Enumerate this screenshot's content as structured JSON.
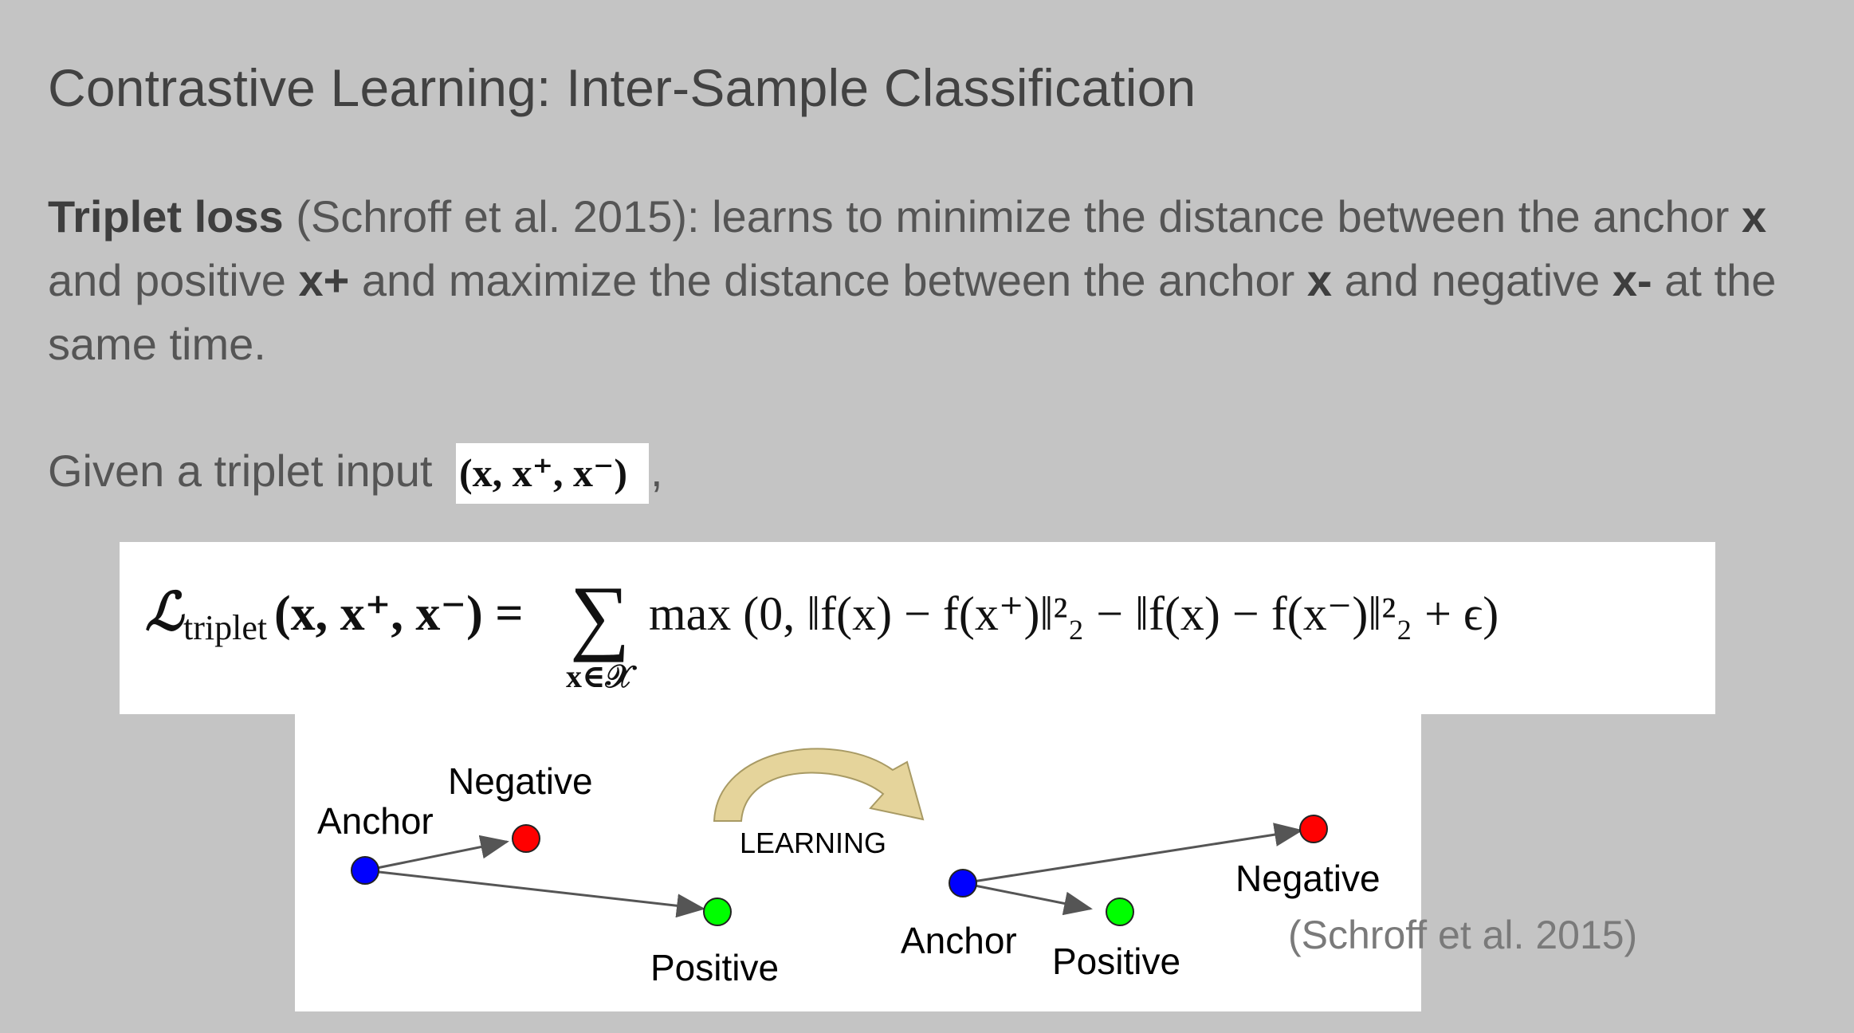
{
  "title": "Contrastive Learning: Inter-Sample Classification",
  "paragraph": {
    "term": "Triplet loss",
    "text1": " (Schroff et al. 2015): learns to minimize the distance between the anchor ",
    "x1": "x",
    "text2": " and positive ",
    "xplus": "x+",
    "text3": " and maximize the distance between the anchor ",
    "x2": "x",
    "text4": " and negative ",
    "xminus": "x-",
    "text5": " at the same time."
  },
  "given": {
    "text": "Given a triplet input",
    "tuple": "(x, x⁺, x⁻)",
    "comma": ","
  },
  "equation": {
    "lhs_L": "ℒ",
    "lhs_sub": "triplet",
    "lhs_args": "(x, x⁺, x⁻) =",
    "sum": "∑",
    "sum_sub": "x∈𝒳",
    "rhs": "max (0, ‖f(x) − f(x⁺)‖²₂ − ‖f(x) − f(x⁻)‖²₂ + ϵ)"
  },
  "figure": {
    "left": {
      "anchor_label": "Anchor",
      "negative_label": "Negative",
      "positive_label": "Positive"
    },
    "learning_label": "LEARNING",
    "right": {
      "anchor_label": "Anchor",
      "negative_label": "Negative",
      "positive_label": "Positive"
    },
    "colors": {
      "anchor": "#0000ff",
      "negative": "#ff0000",
      "positive": "#00ff00",
      "arrow": "#555555",
      "learning_arrow": "#d9c47f"
    }
  },
  "citation": "(Schroff et al. 2015)"
}
